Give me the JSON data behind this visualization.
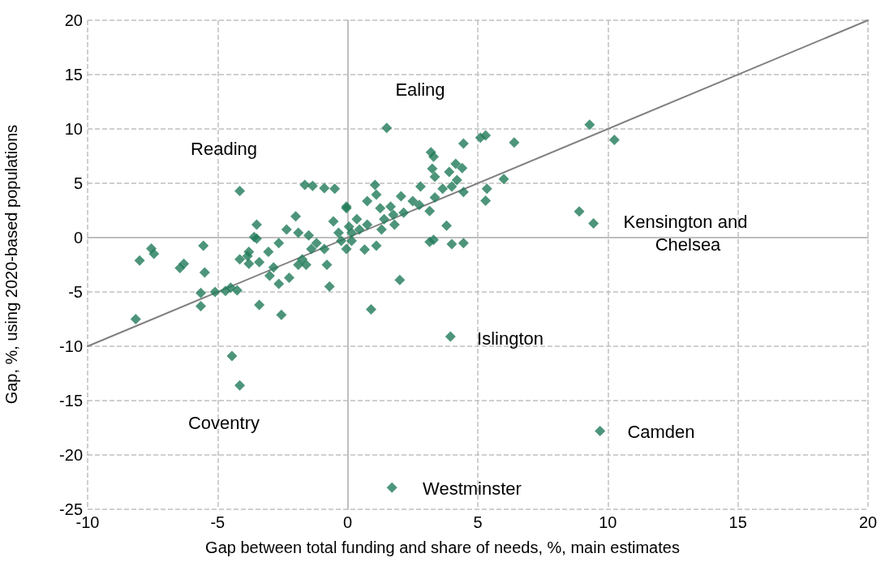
{
  "chart_data": {
    "type": "scatter",
    "xlabel": "Gap between total funding and share of needs, %, main estimates",
    "ylabel": "Gap, %, using 2020-based populations",
    "xlim": [
      -10,
      20
    ],
    "xticks": [
      -10,
      -5,
      0,
      5,
      10,
      15,
      20
    ],
    "ylim": [
      -25,
      20
    ],
    "yticks": [
      -25,
      -20,
      -15,
      -10,
      -5,
      0,
      5,
      10,
      15,
      20
    ],
    "grid": true,
    "marker": "diamond",
    "series": [
      {
        "type": "line",
        "color": "#808080",
        "marker": "none",
        "x": [
          -10,
          20
        ],
        "values": [
          -10,
          20
        ]
      },
      {
        "color": "#217a59",
        "x": [
          -8.15,
          -8.0,
          -7.55,
          -7.45,
          -6.45,
          -6.3,
          -5.55,
          -5.5,
          -5.65,
          -5.65,
          -5.1,
          -4.7,
          -4.5,
          -4.25,
          -4.45,
          -4.15,
          -4.15,
          -4.15,
          -3.85,
          -3.8,
          -3.5,
          -3.5,
          -3.4,
          -2.55,
          -1.65,
          -1.35,
          -0.9,
          -0.5,
          -0.7,
          -2.0,
          -3.6,
          -0.05,
          -2.35,
          -1.9,
          -1.5,
          -2.65,
          -3.05,
          -3.8,
          -0.55,
          -0.35,
          0.15,
          -1.4,
          -0.9,
          -0.8,
          -1.9,
          -1.6,
          -2.85,
          -3.0,
          -2.65,
          -2.25,
          -1.75,
          -1.2,
          -3.4,
          4.45,
          3.2,
          3.3,
          4.15,
          4.4,
          3.25,
          3.9,
          3.35,
          4.2,
          3.65,
          4.0,
          4.45,
          3.35,
          2.8,
          2.05,
          2.5,
          2.75,
          3.15,
          2.15,
          1.65,
          1.75,
          1.8,
          1.05,
          1.1,
          0.75,
          1.25,
          -0.05,
          1.4,
          3.8,
          3.15,
          3.3,
          4.0,
          4.45,
          0.65,
          1.1,
          1.3,
          0.35,
          0.05,
          0.45,
          0.75,
          0.15,
          -0.25,
          -0.05,
          2.0,
          0.9,
          1.5,
          5.1,
          5.3,
          6.4,
          6.0,
          5.35,
          5.3,
          8.9,
          9.45,
          9.3,
          10.25,
          3.95,
          9.7,
          1.7
        ],
        "values": [
          -7.5,
          -2.1,
          -1.0,
          -1.5,
          -2.8,
          -2.4,
          -0.75,
          -3.2,
          -5.1,
          -6.3,
          -5.0,
          -4.9,
          -4.6,
          -4.85,
          -10.9,
          -13.6,
          4.3,
          -2.0,
          -1.7,
          -2.4,
          1.2,
          -0.1,
          -6.2,
          -7.1,
          4.85,
          4.75,
          4.55,
          4.5,
          -4.5,
          1.95,
          0.05,
          2.7,
          0.75,
          0.45,
          0.2,
          -0.5,
          -1.3,
          -1.3,
          1.5,
          0.45,
          0.45,
          -1.05,
          -1.05,
          -2.5,
          -2.5,
          -2.5,
          -2.75,
          -3.5,
          -4.25,
          -3.7,
          -2.0,
          -0.5,
          -2.25,
          8.65,
          7.85,
          7.45,
          6.8,
          6.4,
          6.35,
          6.05,
          5.6,
          5.3,
          4.5,
          4.7,
          4.2,
          3.7,
          4.7,
          3.8,
          3.35,
          3.0,
          2.45,
          2.3,
          2.85,
          2.1,
          1.2,
          4.85,
          3.95,
          3.35,
          2.7,
          2.85,
          1.7,
          1.1,
          -0.4,
          -0.2,
          -0.6,
          -0.5,
          -1.1,
          -0.75,
          0.75,
          1.7,
          1.0,
          0.75,
          1.2,
          -0.3,
          -0.3,
          -1.05,
          -3.9,
          -6.6,
          10.1,
          9.2,
          9.4,
          8.75,
          5.4,
          4.5,
          3.4,
          2.4,
          1.3,
          10.4,
          9.0,
          -9.1,
          -17.8,
          -23.0
        ]
      }
    ],
    "annotations": [
      "Ealing",
      "Reading",
      "Coventry",
      "Islington",
      "Kensington and Chelsea",
      "Camden",
      "Westminster"
    ]
  }
}
